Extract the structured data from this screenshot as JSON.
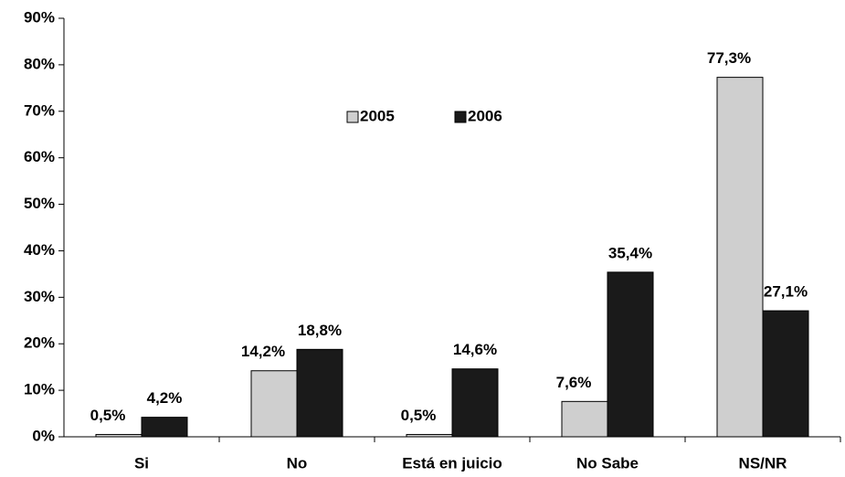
{
  "chart_data": {
    "type": "bar",
    "categories": [
      "Si",
      "No",
      "Está en juicio",
      "No Sabe",
      "NS/NR"
    ],
    "series": [
      {
        "name": "2005",
        "color": "#cfcfcf",
        "values": [
          0.5,
          14.2,
          0.5,
          7.6,
          77.3
        ],
        "value_labels": [
          "0,5%",
          "14,2%",
          "0,5%",
          "7,6%",
          "77,3%"
        ]
      },
      {
        "name": "2006",
        "color": "#1a1a1a",
        "values": [
          4.2,
          18.8,
          14.6,
          35.4,
          27.1
        ],
        "value_labels": [
          "4,2%",
          "18,8%",
          "14,6%",
          "35,4%",
          "27,1%"
        ]
      }
    ],
    "ylim": [
      0,
      90
    ],
    "yticks": [
      {
        "value": 0,
        "label": "0%"
      },
      {
        "value": 10,
        "label": "10%"
      },
      {
        "value": 20,
        "label": "20%"
      },
      {
        "value": 30,
        "label": "30%"
      },
      {
        "value": 40,
        "label": "40%"
      },
      {
        "value": 50,
        "label": "50%"
      },
      {
        "value": 60,
        "label": "60%"
      },
      {
        "value": 70,
        "label": "70%"
      },
      {
        "value": 80,
        "label": "80%"
      },
      {
        "value": 90,
        "label": "90%"
      }
    ]
  }
}
